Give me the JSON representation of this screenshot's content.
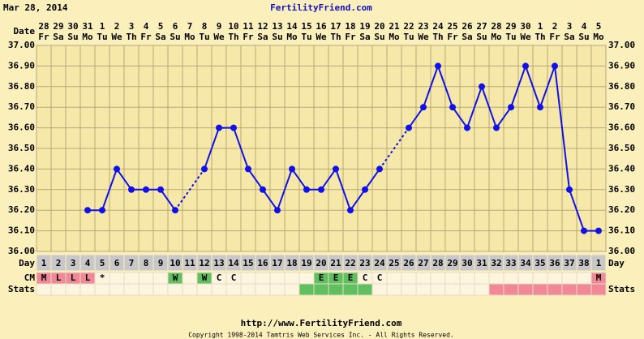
{
  "chart_data": {
    "type": "line",
    "header_date": "Mar 28, 2014",
    "site": "FertilityFriend.com",
    "footer_url": "http://www.FertilityFriend.com",
    "copyright": "Copyright 1998-2014 Tamtris Web Services Inc. - All Rights Reserved.",
    "row_labels": {
      "date": "Date",
      "day": "Day",
      "cm": "CM",
      "stats": "Stats"
    },
    "date_days": [
      "28",
      "29",
      "30",
      "31",
      "1",
      "2",
      "3",
      "4",
      "5",
      "6",
      "7",
      "8",
      "9",
      "10",
      "11",
      "12",
      "13",
      "14",
      "15",
      "16",
      "17",
      "18",
      "19",
      "20",
      "21",
      "22",
      "23",
      "24",
      "25",
      "26",
      "27",
      "28",
      "29",
      "30",
      "1",
      "2",
      "3",
      "4",
      "5"
    ],
    "date_weekdays": [
      "Fr",
      "Sa",
      "Su",
      "Mo",
      "Tu",
      "We",
      "Th",
      "Fr",
      "Sa",
      "Su",
      "Mo",
      "Tu",
      "We",
      "Th",
      "Fr",
      "Sa",
      "Su",
      "Mo",
      "Tu",
      "We",
      "Th",
      "Fr",
      "Sa",
      "Su",
      "Mo",
      "Tu",
      "We",
      "Th",
      "Fr",
      "Sa",
      "Su",
      "Mo",
      "Tu",
      "We",
      "Th",
      "Fr",
      "Sa",
      "Su",
      "Mo"
    ],
    "categories": [
      "1",
      "2",
      "3",
      "4",
      "5",
      "6",
      "7",
      "8",
      "9",
      "10",
      "11",
      "12",
      "13",
      "14",
      "15",
      "16",
      "17",
      "18",
      "19",
      "20",
      "21",
      "22",
      "23",
      "24",
      "25",
      "26",
      "27",
      "28",
      "29",
      "30",
      "31",
      "32",
      "33",
      "34",
      "35",
      "36",
      "37",
      "38",
      "1"
    ],
    "series": [
      {
        "name": "Temperature",
        "color": "#1010e8",
        "values": [
          null,
          null,
          null,
          36.2,
          36.2,
          36.4,
          36.3,
          36.3,
          36.3,
          36.2,
          null,
          36.4,
          36.6,
          36.6,
          36.4,
          36.3,
          36.2,
          36.4,
          36.3,
          36.3,
          36.4,
          36.2,
          36.3,
          36.4,
          null,
          36.6,
          36.7,
          36.9,
          36.7,
          36.6,
          36.8,
          36.6,
          36.7,
          36.9,
          36.7,
          36.9,
          36.3,
          36.1,
          36.1
        ]
      }
    ],
    "cm": [
      "M",
      "L",
      "L",
      "L",
      "*",
      null,
      null,
      null,
      null,
      "W",
      null,
      "W",
      "C",
      "C",
      null,
      null,
      null,
      null,
      null,
      "E",
      "E",
      "E",
      "C",
      "C",
      null,
      null,
      null,
      null,
      null,
      null,
      null,
      null,
      null,
      null,
      null,
      null,
      null,
      null,
      "M"
    ],
    "cm_colors": {
      "M": "#f08898",
      "L": "#f08898",
      "W": "#60c060",
      "E": "#60c060"
    },
    "stats_colors": [
      "#fdf5e0",
      "#fdf5e0",
      "#fdf5e0",
      "#fdf5e0",
      "#fdf5e0",
      "#fdf5e0",
      "#fdf5e0",
      "#fdf5e0",
      "#fdf5e0",
      "#fdf5e0",
      "#fdf5e0",
      "#fdf5e0",
      "#fdf5e0",
      "#fdf5e0",
      "#fdf5e0",
      "#fdf5e0",
      "#fdf5e0",
      "#fdf5e0",
      "#60c060",
      "#60c060",
      "#60c060",
      "#60c060",
      "#60c060",
      "#fdf5e0",
      "#fdf5e0",
      "#fdf5e0",
      "#fdf5e0",
      "#fdf5e0",
      "#fdf5e0",
      "#fdf5e0",
      "#fdf5e0",
      "#f08898",
      "#f08898",
      "#f08898",
      "#f08898",
      "#f08898",
      "#f08898",
      "#f08898",
      "#f08898"
    ],
    "ylim": [
      36.0,
      37.0
    ],
    "yticks": [
      {
        "value": 36.0,
        "label": "36.00"
      },
      {
        "value": 36.1,
        "label": "36.10"
      },
      {
        "value": 36.2,
        "label": "36.20"
      },
      {
        "value": 36.3,
        "label": "36.30"
      },
      {
        "value": 36.4,
        "label": "36.40"
      },
      {
        "value": 36.5,
        "label": "36.50"
      },
      {
        "value": 36.6,
        "label": "36.60"
      },
      {
        "value": 36.7,
        "label": "36.70"
      },
      {
        "value": 36.8,
        "label": "36.80"
      },
      {
        "value": 36.9,
        "label": "36.90"
      },
      {
        "value": 37.0,
        "label": "37.00"
      }
    ],
    "grid": true
  }
}
